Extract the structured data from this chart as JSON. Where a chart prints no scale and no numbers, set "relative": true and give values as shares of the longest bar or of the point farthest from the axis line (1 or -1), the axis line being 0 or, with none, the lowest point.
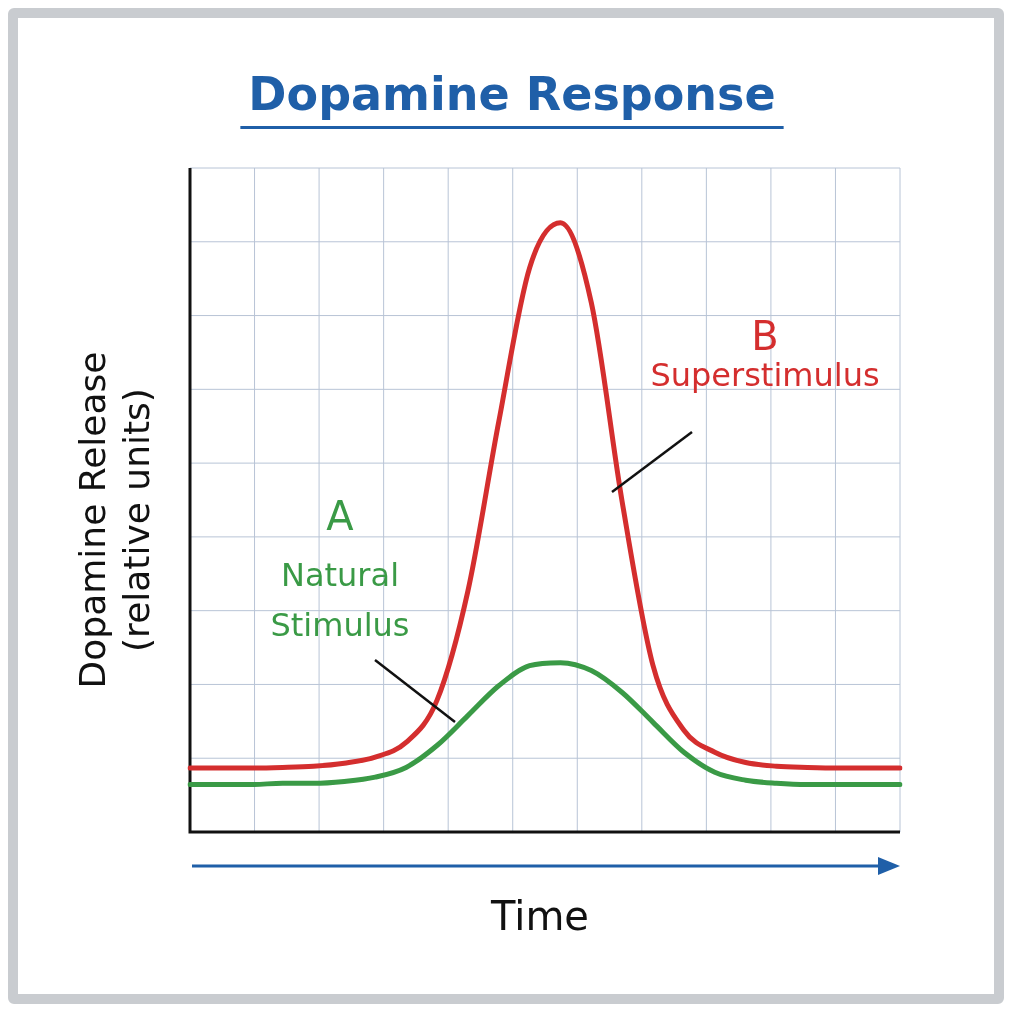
{
  "chart_data": {
    "type": "line",
    "title": "Dopamine Response",
    "xlabel": "Time",
    "ylabel": "Dopamine Release (relative units)",
    "relative": true,
    "grid": true,
    "marker": "none",
    "line_style": "solid",
    "categories": [
      null,
      null,
      null,
      null,
      null,
      null,
      null,
      null,
      null,
      null,
      null,
      null,
      null,
      null,
      null,
      null,
      null,
      null,
      null,
      null,
      null,
      null,
      null,
      null
    ],
    "series": [
      {
        "name": "Natural Stimulus",
        "color": "#3a9a46",
        "values": [
          0.078,
          0.078,
          0.078,
          0.08,
          0.08,
          0.083,
          0.09,
          0.106,
          0.142,
          0.191,
          0.24,
          0.273,
          0.278,
          0.265,
          0.229,
          0.18,
          0.131,
          0.098,
          0.085,
          0.08,
          0.078,
          0.078,
          0.078,
          0.078
        ]
      },
      {
        "name": "Superstimulus",
        "color": "#d42e2e",
        "values": [
          0.105,
          0.105,
          0.105,
          0.106,
          0.108,
          0.113,
          0.123,
          0.147,
          0.216,
          0.395,
          0.673,
          0.926,
          1,
          0.869,
          0.542,
          0.273,
          0.167,
          0.131,
          0.114,
          0.108,
          0.106,
          0.105,
          0.105,
          0.105
        ]
      }
    ],
    "annotations": [
      "A",
      "B"
    ]
  }
}
